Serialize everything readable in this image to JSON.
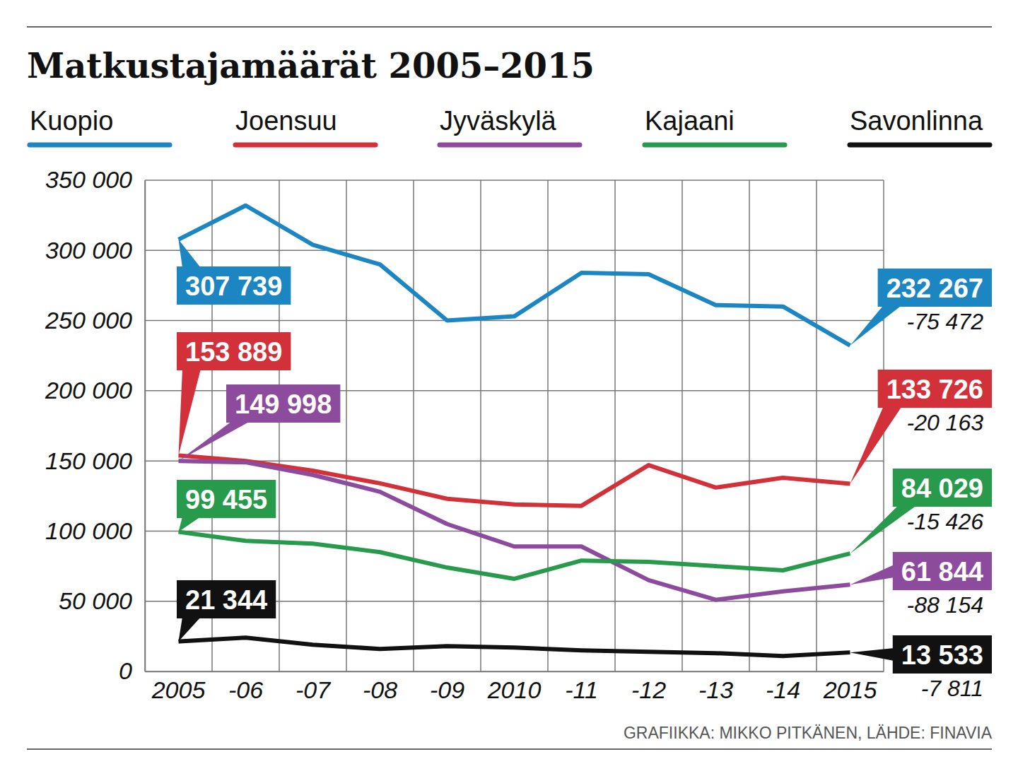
{
  "chart_data": {
    "type": "line",
    "title": "Matkustajamäärät 2005–2015",
    "source": "GRAFIIKKA: MIKKO PITKÄNEN, LÄHDE: FINAVIA",
    "categories": [
      "2005",
      "-06",
      "-07",
      "-08",
      "-09",
      "2010",
      "-11",
      "-12",
      "-13",
      "-14",
      "2015"
    ],
    "ylim": [
      0,
      350000
    ],
    "yticks": [
      0,
      {
        "value": 50000,
        "label": "50 000"
      },
      {
        "value": 100000,
        "label": "100 000"
      },
      {
        "value": 150000,
        "label": "150 000"
      },
      {
        "value": 200000,
        "label": "200 000"
      },
      {
        "value": 250000,
        "label": "250 000"
      },
      {
        "value": 300000,
        "label": "300 000"
      },
      {
        "value": 350000,
        "label": "350 000"
      }
    ],
    "grid": true,
    "legend": "top",
    "data_labels": true,
    "series": [
      {
        "name": "Kuopio",
        "color": "#1b86c2",
        "values": [
          307739,
          332000,
          304000,
          290000,
          250000,
          253000,
          284000,
          283000,
          261000,
          260000,
          232267
        ],
        "value_labels": [
          "307 739",
          null,
          null,
          null,
          null,
          null,
          null,
          null,
          null,
          null,
          "232 267"
        ],
        "change": {
          "value": -75472,
          "label": "-75 472"
        }
      },
      {
        "name": "Joensuu",
        "color": "#d3313a",
        "values": [
          153889,
          150000,
          143000,
          134000,
          123000,
          119000,
          118000,
          147000,
          131000,
          138000,
          133726
        ],
        "value_labels": [
          "153 889",
          null,
          null,
          null,
          null,
          null,
          null,
          null,
          null,
          null,
          "133 726"
        ],
        "change": {
          "value": -20163,
          "label": "-20 163"
        }
      },
      {
        "name": "Jyväskylä",
        "color": "#8d4b9e",
        "values": [
          149998,
          149000,
          140000,
          128000,
          105000,
          89000,
          89000,
          65000,
          51000,
          57000,
          61844
        ],
        "value_labels": [
          "149 998",
          null,
          null,
          null,
          null,
          null,
          null,
          null,
          null,
          null,
          "61 844"
        ],
        "change": {
          "value": -88154,
          "label": "-88 154"
        }
      },
      {
        "name": "Kajaani",
        "color": "#279a4b",
        "values": [
          99455,
          93000,
          91000,
          85000,
          74000,
          66000,
          79000,
          78000,
          75000,
          72000,
          84029
        ],
        "value_labels": [
          "99 455",
          null,
          null,
          null,
          null,
          null,
          null,
          null,
          null,
          null,
          "84 029"
        ],
        "change": {
          "value": -15426,
          "label": "-15 426"
        }
      },
      {
        "name": "Savonlinna",
        "color": "#111111",
        "values": [
          21344,
          24000,
          19000,
          16000,
          18000,
          17000,
          15000,
          14000,
          13000,
          11000,
          13533
        ],
        "value_labels": [
          "21 344",
          null,
          null,
          null,
          null,
          null,
          null,
          null,
          null,
          null,
          "13 533"
        ],
        "change": {
          "value": -7811,
          "label": "-7 811"
        }
      }
    ]
  }
}
